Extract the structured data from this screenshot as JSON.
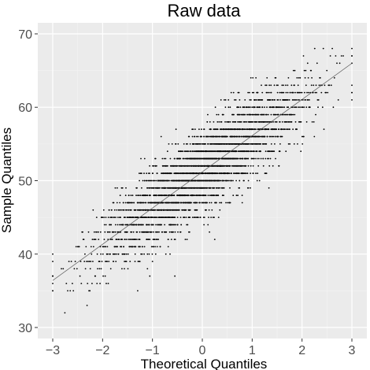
{
  "chart_data": {
    "type": "scatter",
    "title": "Raw data",
    "xlabel": "Theoretical Quantiles",
    "ylabel": "Sample Quantiles",
    "xlim": [
      -3.3,
      3.3
    ],
    "ylim": [
      28.5,
      71.5
    ],
    "x_ticks": [
      -3,
      -2,
      -1,
      0,
      1,
      2,
      3
    ],
    "y_ticks": [
      30,
      40,
      50,
      60,
      70
    ],
    "grid": true,
    "legend": "none",
    "reference_line": {
      "intercept": 51.2,
      "slope": 4.93
    },
    "sample_description": "normal Q-Q plot of integer-valued sample; horizontal bands of points at each integer value",
    "y_range_observed": [
      32,
      68
    ],
    "band_spread_y": 5,
    "colors": {
      "panel": "#ebebeb",
      "grid_major": "#ffffff",
      "grid_minor": "#f5f5f5",
      "points": "#000000",
      "line": "#555555"
    }
  }
}
